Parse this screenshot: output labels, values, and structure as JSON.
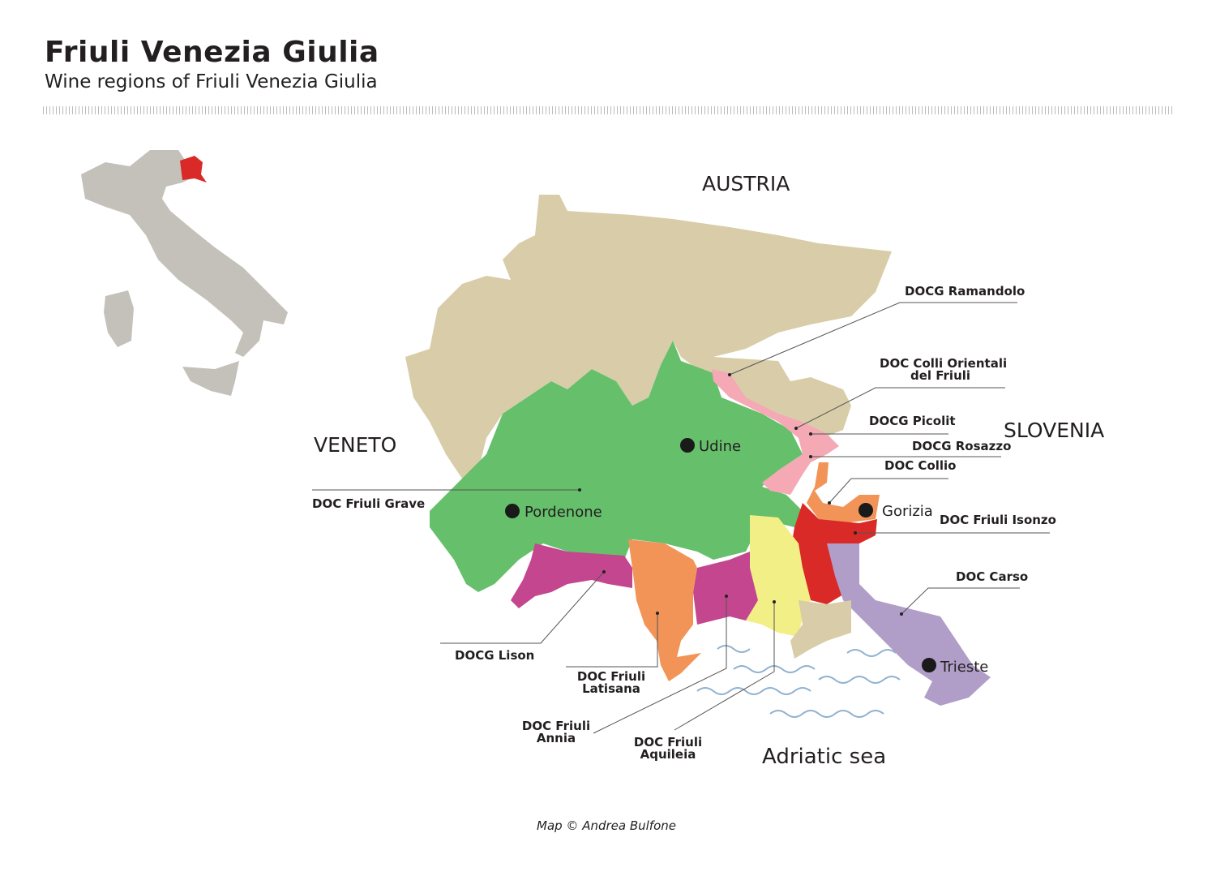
{
  "header": {
    "title": "Friuli Venezia Giulia",
    "subtitle": "Wine regions of Friuli Venezia Giulia"
  },
  "countries": {
    "austria": "AUSTRIA",
    "veneto": "VENETO",
    "slovenia": "SLOVENIA"
  },
  "cities": {
    "udine": "Udine",
    "pordenone": "Pordenone",
    "gorizia": "Gorizia",
    "trieste": "Trieste"
  },
  "sea": "Adriatic sea",
  "regions": {
    "ramandolo": {
      "label": "DOCG Ramandolo",
      "color": "#f4a9b5"
    },
    "colli_orientali": {
      "line1": "DOC Colli Orientali",
      "line2": "del Friuli",
      "color": "#f4a9b5"
    },
    "picolit": {
      "label": "DOCG Picolit",
      "color": "#f4a9b5"
    },
    "rosazzo": {
      "label": "DOCG Rosazzo",
      "color": "#f4a9b5"
    },
    "collio": {
      "label": "DOC Collio",
      "color": "#f29458"
    },
    "isonzo": {
      "label": "DOC Friuli Isonzo",
      "color": "#d92a27"
    },
    "carso": {
      "label": "DOC Carso",
      "color": "#b09ec8"
    },
    "grave": {
      "label": "DOC Friuli Grave",
      "color": "#66bf6b"
    },
    "lison": {
      "label": "DOCG Lison",
      "color": "#c3468f"
    },
    "latisana": {
      "line1": "DOC Friuli",
      "line2": "Latisana",
      "color": "#f29458"
    },
    "annia": {
      "line1": "DOC Friuli",
      "line2": "Annia",
      "color": "#c3468f"
    },
    "aquileia": {
      "line1": "DOC Friuli",
      "line2": "Aquileia",
      "color": "#f3ef87"
    }
  },
  "colors": {
    "land": "#d8cda8",
    "italy": "#c4c1bb",
    "fvg_highlight": "#d92a27",
    "water": "#8fb1cf"
  },
  "credit": "Map © Andrea Bulfone"
}
